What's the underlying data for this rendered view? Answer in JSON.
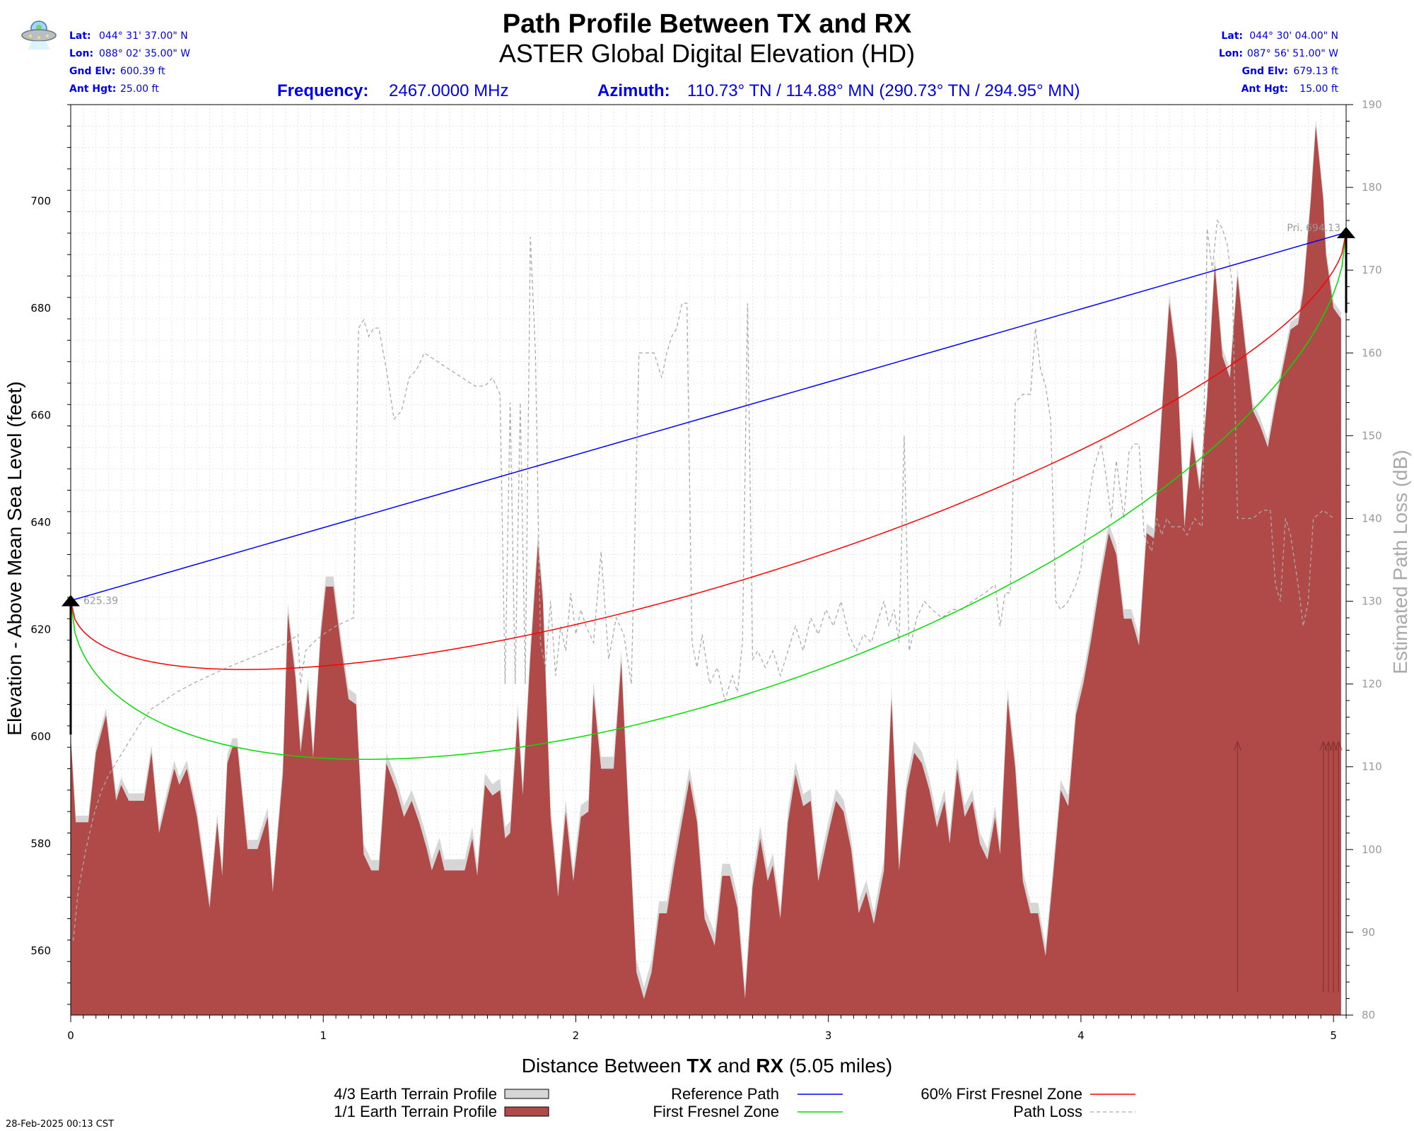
{
  "header": {
    "title": "Path Profile Between TX and RX",
    "subtitle": "ASTER Global Digital Elevation (HD)",
    "frequency_label": "Frequency:",
    "frequency_value": "2467.0000 MHz",
    "azimuth_label": "Azimuth:",
    "azimuth_value": "110.73° TN / 114.88° MN  (290.73° TN / 294.95° MN)",
    "ufo_icon": "ufo-icon"
  },
  "tx": {
    "lat_label": "Lat:",
    "lat": "044° 31' 37.00\" N",
    "lon_label": "Lon:",
    "lon": "088° 02' 35.00\" W",
    "elv_label": "Gnd Elv:",
    "elv": "600.39 ft",
    "ant_label": "Ant Hgt:",
    "ant": "25.00 ft"
  },
  "rx": {
    "lat_label": "Lat:",
    "lat": "044° 30' 04.00\" N",
    "lon_label": "Lon:",
    "lon": "087° 56' 51.00\" W",
    "elv_label": "Gnd Elv:",
    "elv": "679.13 ft",
    "ant_label": "Ant Hgt:",
    "ant": "15.00 ft"
  },
  "footer": {
    "timestamp": "28-Feb-2025 00:13 CST"
  },
  "colors": {
    "header_blue": "#0000ee",
    "terrain_1_1": "#b04a48",
    "terrain_4_3": "#d6d6d6",
    "reference_path": "#0000ff",
    "first_fresnel": "#00dd00",
    "fresnel_60": "#ff0000",
    "path_loss": "#aaaaaa"
  },
  "chart_data": {
    "type": "area",
    "xlabel_prefix": "Distance Between ",
    "xlabel_tx": "TX",
    "xlabel_and": "  and ",
    "xlabel_rx": "RX",
    "xlabel_suffix": "  (5.05 miles)",
    "ylabel": "Elevation - Above Mean Sea Level (feet)",
    "y2label": "Estimated Path Loss (dB)",
    "xlim": [
      0,
      5.05
    ],
    "ylim": [
      548,
      718
    ],
    "y2lim": [
      80,
      190
    ],
    "x_ticks": [
      "0",
      "1",
      "2",
      "3",
      "4",
      "5"
    ],
    "y_ticks": [
      "560",
      "580",
      "600",
      "620",
      "640",
      "660",
      "680",
      "700"
    ],
    "y2_ticks": [
      "80",
      "90",
      "100",
      "110",
      "120",
      "130",
      "140",
      "150",
      "160",
      "170",
      "180",
      "190"
    ],
    "grid": true,
    "tx_label": "625.39",
    "rx_label": "Pri. 694.13",
    "tx_antenna_top": 625.39,
    "rx_antenna_top": 694.13,
    "tx_ground": 600.39,
    "rx_ground": 679.13,
    "legend": {
      "terrain_4_3": "4/3 Earth Terrain Profile",
      "terrain_1_1": "1/1 Earth Terrain Profile",
      "reference_path": "Reference Path",
      "first_fresnel": "First Fresnel Zone",
      "fresnel_60": "60% First Fresnel Zone",
      "path_loss": "Path Loss"
    },
    "terrain": [
      [
        0.0,
        600
      ],
      [
        0.02,
        584
      ],
      [
        0.07,
        584
      ],
      [
        0.1,
        597
      ],
      [
        0.14,
        604
      ],
      [
        0.18,
        588
      ],
      [
        0.2,
        591
      ],
      [
        0.23,
        588
      ],
      [
        0.29,
        588
      ],
      [
        0.32,
        597
      ],
      [
        0.35,
        582
      ],
      [
        0.38,
        588
      ],
      [
        0.41,
        594
      ],
      [
        0.43,
        591
      ],
      [
        0.46,
        594
      ],
      [
        0.5,
        585
      ],
      [
        0.55,
        568
      ],
      [
        0.58,
        584
      ],
      [
        0.6,
        574
      ],
      [
        0.62,
        595
      ],
      [
        0.64,
        598
      ],
      [
        0.66,
        598
      ],
      [
        0.7,
        579
      ],
      [
        0.74,
        579
      ],
      [
        0.78,
        585
      ],
      [
        0.8,
        571
      ],
      [
        0.84,
        593
      ],
      [
        0.86,
        623
      ],
      [
        0.89,
        611
      ],
      [
        0.91,
        597
      ],
      [
        0.94,
        609
      ],
      [
        0.96,
        596
      ],
      [
        0.99,
        619
      ],
      [
        1.01,
        628
      ],
      [
        1.04,
        628
      ],
      [
        1.07,
        617
      ],
      [
        1.1,
        607
      ],
      [
        1.13,
        606
      ],
      [
        1.16,
        578
      ],
      [
        1.19,
        575
      ],
      [
        1.22,
        575
      ],
      [
        1.25,
        595
      ],
      [
        1.29,
        590
      ],
      [
        1.32,
        585
      ],
      [
        1.35,
        588
      ],
      [
        1.38,
        584
      ],
      [
        1.41,
        579
      ],
      [
        1.43,
        575
      ],
      [
        1.46,
        579
      ],
      [
        1.48,
        575
      ],
      [
        1.52,
        575
      ],
      [
        1.56,
        575
      ],
      [
        1.59,
        581
      ],
      [
        1.61,
        574
      ],
      [
        1.64,
        591
      ],
      [
        1.67,
        589
      ],
      [
        1.7,
        590
      ],
      [
        1.72,
        581
      ],
      [
        1.74,
        582
      ],
      [
        1.77,
        604
      ],
      [
        1.79,
        589
      ],
      [
        1.82,
        615
      ],
      [
        1.85,
        636
      ],
      [
        1.87,
        625
      ],
      [
        1.9,
        585
      ],
      [
        1.93,
        570
      ],
      [
        1.96,
        586
      ],
      [
        1.99,
        573
      ],
      [
        2.02,
        585
      ],
      [
        2.05,
        586
      ],
      [
        2.07,
        608
      ],
      [
        2.1,
        594
      ],
      [
        2.15,
        594
      ],
      [
        2.18,
        614
      ],
      [
        2.21,
        584
      ],
      [
        2.24,
        556
      ],
      [
        2.27,
        551
      ],
      [
        2.3,
        556
      ],
      [
        2.33,
        567
      ],
      [
        2.36,
        567
      ],
      [
        2.39,
        576
      ],
      [
        2.42,
        584
      ],
      [
        2.45,
        592
      ],
      [
        2.48,
        584
      ],
      [
        2.51,
        566
      ],
      [
        2.55,
        561
      ],
      [
        2.58,
        574
      ],
      [
        2.61,
        574
      ],
      [
        2.64,
        568
      ],
      [
        2.67,
        551
      ],
      [
        2.7,
        572
      ],
      [
        2.73,
        581
      ],
      [
        2.76,
        573
      ],
      [
        2.78,
        576
      ],
      [
        2.81,
        566
      ],
      [
        2.84,
        584
      ],
      [
        2.87,
        593
      ],
      [
        2.9,
        587
      ],
      [
        2.93,
        588
      ],
      [
        2.96,
        573
      ],
      [
        3.0,
        582
      ],
      [
        3.03,
        588
      ],
      [
        3.06,
        586
      ],
      [
        3.09,
        579
      ],
      [
        3.12,
        567
      ],
      [
        3.15,
        571
      ],
      [
        3.18,
        565
      ],
      [
        3.22,
        575
      ],
      [
        3.25,
        607
      ],
      [
        3.28,
        575
      ],
      [
        3.31,
        590
      ],
      [
        3.34,
        597
      ],
      [
        3.37,
        595
      ],
      [
        3.4,
        590
      ],
      [
        3.43,
        583
      ],
      [
        3.46,
        588
      ],
      [
        3.48,
        580
      ],
      [
        3.51,
        594
      ],
      [
        3.54,
        585
      ],
      [
        3.57,
        588
      ],
      [
        3.6,
        580
      ],
      [
        3.63,
        577
      ],
      [
        3.66,
        585
      ],
      [
        3.68,
        578
      ],
      [
        3.71,
        607
      ],
      [
        3.74,
        594
      ],
      [
        3.77,
        573
      ],
      [
        3.8,
        567
      ],
      [
        3.83,
        567
      ],
      [
        3.86,
        559
      ],
      [
        3.89,
        574
      ],
      [
        3.92,
        590
      ],
      [
        3.95,
        587
      ],
      [
        3.98,
        604
      ],
      [
        4.01,
        610
      ],
      [
        4.04,
        618
      ],
      [
        4.08,
        630
      ],
      [
        4.11,
        638
      ],
      [
        4.14,
        634
      ],
      [
        4.17,
        622
      ],
      [
        4.2,
        622
      ],
      [
        4.23,
        617
      ],
      [
        4.26,
        638
      ],
      [
        4.29,
        637
      ],
      [
        4.32,
        660
      ],
      [
        4.35,
        681
      ],
      [
        4.38,
        670
      ],
      [
        4.41,
        639
      ],
      [
        4.44,
        656
      ],
      [
        4.47,
        646
      ],
      [
        4.5,
        663
      ],
      [
        4.53,
        688
      ],
      [
        4.56,
        671
      ],
      [
        4.59,
        667
      ],
      [
        4.62,
        686
      ],
      [
        4.65,
        673
      ],
      [
        4.68,
        661
      ],
      [
        4.71,
        658
      ],
      [
        4.74,
        654
      ],
      [
        4.77,
        662
      ],
      [
        4.8,
        669
      ],
      [
        4.83,
        676
      ],
      [
        4.86,
        677
      ],
      [
        4.88,
        683
      ],
      [
        4.91,
        700
      ],
      [
        4.93,
        714
      ],
      [
        4.96,
        700
      ],
      [
        4.97,
        690
      ],
      [
        5.0,
        680
      ],
      [
        5.03,
        678
      ]
    ],
    "path_loss": [
      [
        0.01,
        89
      ],
      [
        0.03,
        95
      ],
      [
        0.06,
        100
      ],
      [
        0.09,
        104
      ],
      [
        0.12,
        107
      ],
      [
        0.15,
        109
      ],
      [
        0.19,
        111
      ],
      [
        0.23,
        113
      ],
      [
        0.27,
        115
      ],
      [
        0.32,
        117
      ],
      [
        0.37,
        118
      ],
      [
        0.42,
        119
      ],
      [
        0.48,
        120
      ],
      [
        0.55,
        121
      ],
      [
        0.62,
        122
      ],
      [
        0.7,
        123
      ],
      [
        0.78,
        124
      ],
      [
        0.86,
        125
      ],
      [
        0.9,
        126
      ],
      [
        0.91,
        120
      ],
      [
        0.93,
        124
      ],
      [
        0.96,
        125
      ],
      [
        1.0,
        126
      ],
      [
        1.05,
        127
      ],
      [
        1.12,
        128
      ],
      [
        1.14,
        163
      ],
      [
        1.16,
        164
      ],
      [
        1.18,
        162
      ],
      [
        1.2,
        163
      ],
      [
        1.22,
        163
      ],
      [
        1.25,
        158
      ],
      [
        1.28,
        152
      ],
      [
        1.31,
        153
      ],
      [
        1.34,
        157
      ],
      [
        1.37,
        158
      ],
      [
        1.4,
        160
      ],
      [
        1.45,
        159
      ],
      [
        1.5,
        158
      ],
      [
        1.55,
        157
      ],
      [
        1.6,
        156
      ],
      [
        1.64,
        156
      ],
      [
        1.67,
        157
      ],
      [
        1.7,
        155
      ],
      [
        1.72,
        120
      ],
      [
        1.74,
        154
      ],
      [
        1.76,
        120
      ],
      [
        1.78,
        154
      ],
      [
        1.8,
        120
      ],
      [
        1.82,
        174
      ],
      [
        1.84,
        160
      ],
      [
        1.86,
        125
      ],
      [
        1.88,
        122
      ],
      [
        1.9,
        130
      ],
      [
        1.92,
        121
      ],
      [
        1.94,
        127
      ],
      [
        1.96,
        124
      ],
      [
        1.98,
        131
      ],
      [
        2.0,
        126
      ],
      [
        2.02,
        129
      ],
      [
        2.04,
        127
      ],
      [
        2.07,
        125
      ],
      [
        2.1,
        136
      ],
      [
        2.13,
        123
      ],
      [
        2.16,
        128
      ],
      [
        2.19,
        126
      ],
      [
        2.22,
        120
      ],
      [
        2.25,
        160
      ],
      [
        2.28,
        160
      ],
      [
        2.31,
        160
      ],
      [
        2.34,
        157
      ],
      [
        2.36,
        160
      ],
      [
        2.38,
        162
      ],
      [
        2.4,
        163
      ],
      [
        2.42,
        166
      ],
      [
        2.44,
        166
      ],
      [
        2.46,
        125
      ],
      [
        2.48,
        122
      ],
      [
        2.5,
        126
      ],
      [
        2.53,
        120
      ],
      [
        2.56,
        122
      ],
      [
        2.59,
        118
      ],
      [
        2.62,
        121
      ],
      [
        2.64,
        119
      ],
      [
        2.66,
        125
      ],
      [
        2.68,
        166
      ],
      [
        2.7,
        123
      ],
      [
        2.72,
        124
      ],
      [
        2.75,
        122
      ],
      [
        2.78,
        124
      ],
      [
        2.81,
        121
      ],
      [
        2.84,
        124
      ],
      [
        2.87,
        127
      ],
      [
        2.9,
        124
      ],
      [
        2.93,
        128
      ],
      [
        2.96,
        126
      ],
      [
        2.99,
        129
      ],
      [
        3.02,
        127
      ],
      [
        3.05,
        130
      ],
      [
        3.08,
        126
      ],
      [
        3.11,
        124
      ],
      [
        3.14,
        126
      ],
      [
        3.17,
        125
      ],
      [
        3.2,
        128
      ],
      [
        3.22,
        130
      ],
      [
        3.24,
        127
      ],
      [
        3.26,
        129
      ],
      [
        3.28,
        125
      ],
      [
        3.3,
        150
      ],
      [
        3.32,
        124
      ],
      [
        3.35,
        128
      ],
      [
        3.38,
        130
      ],
      [
        3.41,
        129
      ],
      [
        3.45,
        128
      ],
      [
        3.49,
        129
      ],
      [
        3.53,
        129
      ],
      [
        3.57,
        130
      ],
      [
        3.62,
        131
      ],
      [
        3.66,
        132
      ],
      [
        3.68,
        127
      ],
      [
        3.7,
        131
      ],
      [
        3.72,
        131
      ],
      [
        3.74,
        154
      ],
      [
        3.77,
        155
      ],
      [
        3.8,
        155
      ],
      [
        3.82,
        163
      ],
      [
        3.84,
        158
      ],
      [
        3.86,
        156
      ],
      [
        3.88,
        152
      ],
      [
        3.9,
        130
      ],
      [
        3.92,
        129
      ],
      [
        3.95,
        130
      ],
      [
        3.98,
        132
      ],
      [
        4.0,
        134
      ],
      [
        4.03,
        142
      ],
      [
        4.05,
        146
      ],
      [
        4.08,
        149
      ],
      [
        4.1,
        145
      ],
      [
        4.12,
        140
      ],
      [
        4.14,
        147
      ],
      [
        4.17,
        140
      ],
      [
        4.19,
        148
      ],
      [
        4.21,
        149
      ],
      [
        4.23,
        149
      ],
      [
        4.25,
        138
      ],
      [
        4.28,
        136
      ],
      [
        4.3,
        140
      ],
      [
        4.32,
        138
      ],
      [
        4.34,
        140
      ],
      [
        4.36,
        139
      ],
      [
        4.4,
        139
      ],
      [
        4.42,
        138
      ],
      [
        4.45,
        140
      ],
      [
        4.48,
        139
      ],
      [
        4.5,
        175
      ],
      [
        4.52,
        170
      ],
      [
        4.54,
        176
      ],
      [
        4.56,
        175
      ],
      [
        4.58,
        173
      ],
      [
        4.6,
        168
      ],
      [
        4.62,
        140
      ],
      [
        4.65,
        140
      ],
      [
        4.68,
        140
      ],
      [
        4.72,
        141
      ],
      [
        4.75,
        141
      ],
      [
        4.77,
        132
      ],
      [
        4.79,
        130
      ],
      [
        4.81,
        140
      ],
      [
        4.83,
        138
      ],
      [
        4.86,
        132
      ],
      [
        4.88,
        127
      ],
      [
        4.9,
        130
      ],
      [
        4.92,
        140
      ],
      [
        4.96,
        141
      ],
      [
        5.0,
        140
      ]
    ]
  }
}
